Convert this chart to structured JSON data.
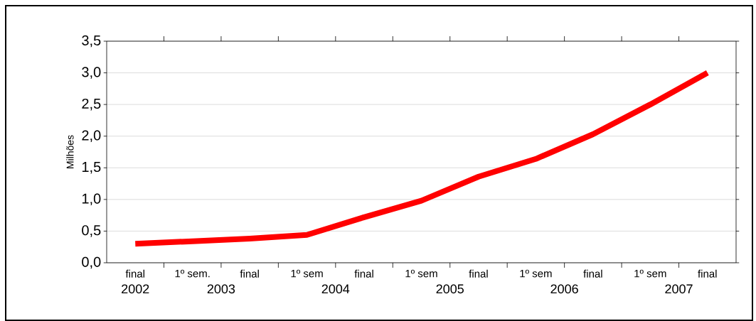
{
  "chart_data": {
    "type": "line",
    "ylabel": "Milhões",
    "categories": [
      "final",
      "1º sem.",
      "final",
      "1º sem",
      "final",
      "1º sem",
      "final",
      "1º sem",
      "final",
      "1º sem",
      "final"
    ],
    "series": [
      {
        "color": "#ff0000",
        "values": [
          0.3,
          0.34,
          0.38,
          0.44,
          0.72,
          0.98,
          1.36,
          1.64,
          2.03,
          2.5,
          3.0
        ]
      }
    ],
    "ylim": [
      0,
      3.5
    ],
    "yticks": [
      {
        "value": 0,
        "label": "0,0"
      },
      {
        "value": 0.5,
        "label": "0,5"
      },
      {
        "value": 1,
        "label": "1,0"
      },
      {
        "value": 1.5,
        "label": "1,5"
      },
      {
        "value": 2,
        "label": "2,0"
      },
      {
        "value": 2.5,
        "label": "2,5"
      },
      {
        "value": 3,
        "label": "3,0"
      },
      {
        "value": 3.5,
        "label": "3,5"
      }
    ],
    "grid": "y",
    "marker": "none",
    "line_style": "solid",
    "annotations": [
      "2002",
      "2003",
      "2004",
      "2005",
      "2006",
      "2007"
    ]
  }
}
